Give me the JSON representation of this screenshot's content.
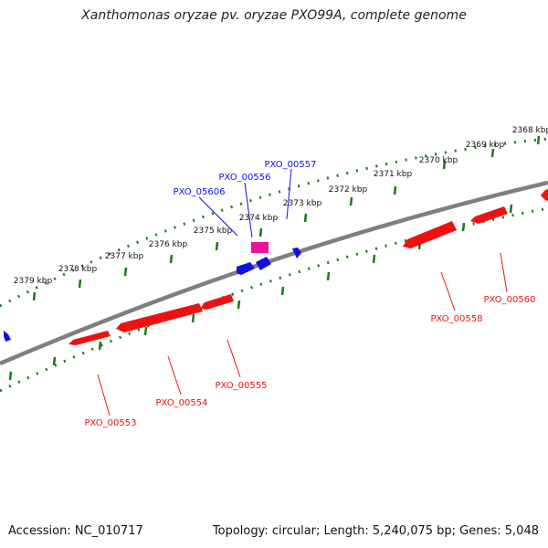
{
  "title": "Xanthomonas oryzae pv. oryzae PXO99A, complete genome",
  "footer": {
    "accession": "Accession: NC_010717",
    "summary": "Topology: circular; Length: 5,240,075 bp; Genes: 5,048"
  },
  "colors": {
    "backbone": "#7f7f7f",
    "ticks": "#1a7a1a",
    "forward_gene": "#1010e0",
    "reverse_gene": "#ee1111",
    "rna_gene": "#ee1199"
  },
  "ticks": [
    "2368 kbp",
    "2369 kbp",
    "2370 kbp",
    "2371 kbp",
    "2372 kbp",
    "2373 kbp",
    "2374 kbp",
    "2375 kbp",
    "2376 kbp",
    "2377 kbp",
    "2378 kbp",
    "2379 kbp"
  ],
  "genes_forward": [
    "PXO_05606",
    "PXO_00556",
    "PXO_00557"
  ],
  "genes_reverse": [
    "PXO_00553",
    "PXO_00554",
    "PXO_00555",
    "PXO_00558",
    "PXO_00560"
  ]
}
